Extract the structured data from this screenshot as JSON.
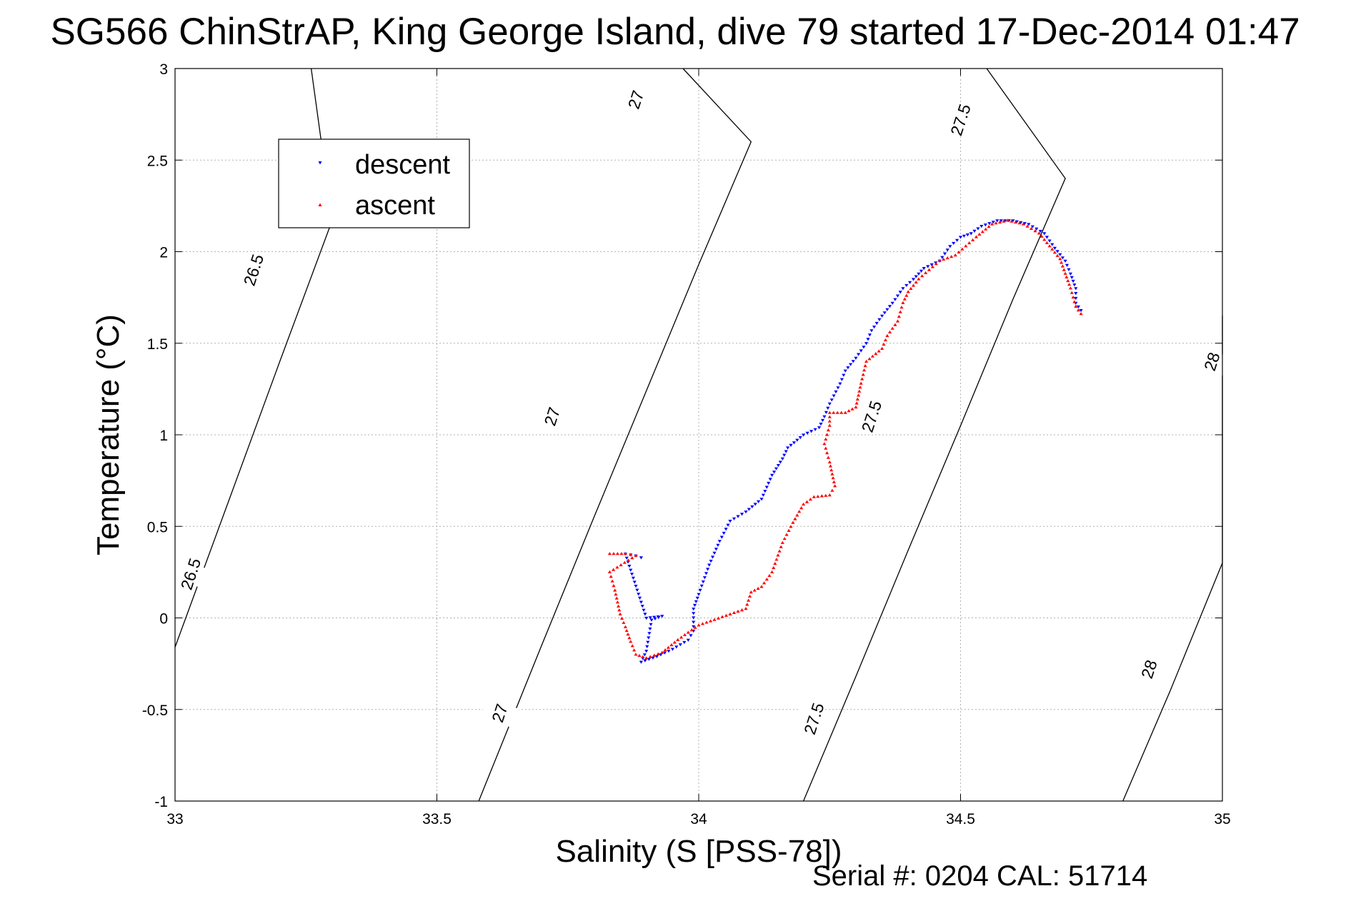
{
  "chart_data": {
    "type": "scatter",
    "title": "SG566 ChinStrAP, King George Island, dive 79 started 17-Dec-2014 01:47",
    "xlabel": "Salinity (S [PSS-78])",
    "ylabel": "Temperature (°C)",
    "footer": "Serial #: 0204  CAL: 51714",
    "xlim": [
      33,
      35
    ],
    "ylim": [
      -1,
      3
    ],
    "x_ticks": [
      33,
      33.5,
      34,
      34.5,
      35
    ],
    "x_tick_labels": [
      "33",
      "33.5",
      "34",
      "34.5",
      "35"
    ],
    "y_ticks": [
      -1,
      -0.5,
      0,
      0.5,
      1,
      1.5,
      2,
      2.5,
      3
    ],
    "y_tick_labels": [
      "-1",
      "-0.5",
      "0",
      "0.5",
      "1",
      "1.5",
      "2",
      "2.5",
      "3"
    ],
    "grid": true,
    "legend": {
      "position": "top-left",
      "entries": [
        "descent",
        "ascent"
      ]
    },
    "colors": {
      "descent": "#0000ff",
      "ascent": "#ff0000",
      "contour": "#000000",
      "grid": "#b0b0b0"
    },
    "isopycnals": [
      {
        "level": "26.5",
        "points": [
          [
            33.0,
            -0.16
          ],
          [
            33.1,
            0.62
          ],
          [
            33.2,
            1.4
          ],
          [
            33.3,
            2.17
          ],
          [
            33.26,
            3.0
          ]
        ],
        "labels": [
          {
            "x": 33.03,
            "y": 0.24,
            "text": "26.5"
          },
          {
            "x": 33.15,
            "y": 1.9,
            "text": "26.5"
          }
        ]
      },
      {
        "level": "27",
        "points": [
          [
            33.58,
            -1.0
          ],
          [
            33.7,
            -0.15
          ],
          [
            33.8,
            0.55
          ],
          [
            33.9,
            1.24
          ],
          [
            34.0,
            1.93
          ],
          [
            34.1,
            2.6
          ],
          [
            33.97,
            3.0
          ]
        ],
        "labels": [
          {
            "x": 33.62,
            "y": -0.52,
            "text": "27"
          },
          {
            "x": 33.72,
            "y": 1.1,
            "text": "27"
          },
          {
            "x": 33.88,
            "y": 2.83,
            "text": "27"
          }
        ]
      },
      {
        "level": "27.5",
        "points": [
          [
            34.2,
            -1.0
          ],
          [
            34.3,
            -0.32
          ],
          [
            34.4,
            0.37
          ],
          [
            34.5,
            1.05
          ],
          [
            34.6,
            1.74
          ],
          [
            34.7,
            2.4
          ],
          [
            34.55,
            3.0
          ]
        ],
        "labels": [
          {
            "x": 34.22,
            "y": -0.55,
            "text": "27.5"
          },
          {
            "x": 34.33,
            "y": 1.1,
            "text": "27.5"
          },
          {
            "x": 34.5,
            "y": 2.72,
            "text": "27.5"
          }
        ]
      },
      {
        "level": "28",
        "points": [
          [
            34.81,
            -1.0
          ],
          [
            34.9,
            -0.4
          ],
          [
            35.0,
            0.3
          ],
          [
            35.0,
            1.0
          ],
          [
            35.0,
            1.65
          ]
        ],
        "labels": [
          {
            "x": 34.86,
            "y": -0.28,
            "text": "28"
          },
          {
            "x": 34.98,
            "y": 1.4,
            "text": "28"
          }
        ]
      }
    ],
    "series": [
      {
        "name": "descent",
        "marker": "down-triangle",
        "trace": [
          [
            33.89,
            0.33
          ],
          [
            33.88,
            0.34
          ],
          [
            33.86,
            0.35
          ],
          [
            33.9,
            0.0
          ],
          [
            33.93,
            0.01
          ],
          [
            33.91,
            -0.01
          ],
          [
            33.9,
            -0.18
          ],
          [
            33.89,
            -0.24
          ],
          [
            33.92,
            -0.21
          ],
          [
            33.95,
            -0.17
          ],
          [
            33.98,
            -0.12
          ],
          [
            33.99,
            -0.07
          ],
          [
            33.99,
            0.05
          ],
          [
            34.0,
            0.13
          ],
          [
            34.02,
            0.29
          ],
          [
            34.04,
            0.42
          ],
          [
            34.06,
            0.53
          ],
          [
            34.09,
            0.58
          ],
          [
            34.12,
            0.65
          ],
          [
            34.14,
            0.78
          ],
          [
            34.16,
            0.87
          ],
          [
            34.17,
            0.93
          ],
          [
            34.2,
            1.0
          ],
          [
            34.23,
            1.04
          ],
          [
            34.24,
            1.1
          ],
          [
            34.25,
            1.17
          ],
          [
            34.27,
            1.28
          ],
          [
            34.28,
            1.35
          ],
          [
            34.3,
            1.42
          ],
          [
            34.32,
            1.5
          ],
          [
            34.33,
            1.57
          ],
          [
            34.35,
            1.65
          ],
          [
            34.37,
            1.72
          ],
          [
            34.39,
            1.8
          ],
          [
            34.41,
            1.85
          ],
          [
            34.43,
            1.91
          ],
          [
            34.46,
            1.95
          ],
          [
            34.48,
            2.03
          ],
          [
            34.5,
            2.08
          ],
          [
            34.52,
            2.1
          ],
          [
            34.54,
            2.14
          ],
          [
            34.57,
            2.17
          ],
          [
            34.6,
            2.17
          ],
          [
            34.63,
            2.15
          ],
          [
            34.66,
            2.1
          ],
          [
            34.68,
            2.02
          ],
          [
            34.7,
            1.95
          ],
          [
            34.71,
            1.88
          ],
          [
            34.72,
            1.8
          ],
          [
            34.72,
            1.72
          ],
          [
            34.73,
            1.68
          ]
        ]
      },
      {
        "name": "ascent",
        "marker": "up-triangle",
        "trace": [
          [
            33.83,
            0.35
          ],
          [
            33.86,
            0.35
          ],
          [
            33.88,
            0.34
          ],
          [
            33.83,
            0.25
          ],
          [
            33.84,
            0.15
          ],
          [
            33.85,
            0.02
          ],
          [
            33.86,
            -0.05
          ],
          [
            33.87,
            -0.13
          ],
          [
            33.88,
            -0.2
          ],
          [
            33.9,
            -0.22
          ],
          [
            33.93,
            -0.19
          ],
          [
            33.96,
            -0.12
          ],
          [
            34.0,
            -0.04
          ],
          [
            34.03,
            -0.01
          ],
          [
            34.06,
            0.02
          ],
          [
            34.09,
            0.05
          ],
          [
            34.1,
            0.14
          ],
          [
            34.12,
            0.17
          ],
          [
            34.14,
            0.25
          ],
          [
            34.16,
            0.41
          ],
          [
            34.18,
            0.52
          ],
          [
            34.2,
            0.62
          ],
          [
            34.22,
            0.66
          ],
          [
            34.25,
            0.67
          ],
          [
            34.26,
            0.72
          ],
          [
            34.25,
            0.85
          ],
          [
            34.24,
            0.95
          ],
          [
            34.25,
            1.05
          ],
          [
            34.25,
            1.12
          ],
          [
            34.28,
            1.12
          ],
          [
            34.3,
            1.15
          ],
          [
            34.31,
            1.28
          ],
          [
            34.32,
            1.4
          ],
          [
            34.35,
            1.47
          ],
          [
            34.36,
            1.54
          ],
          [
            34.38,
            1.62
          ],
          [
            34.39,
            1.72
          ],
          [
            34.4,
            1.78
          ],
          [
            34.42,
            1.85
          ],
          [
            34.44,
            1.9
          ],
          [
            34.46,
            1.95
          ],
          [
            34.49,
            1.98
          ],
          [
            34.51,
            2.03
          ],
          [
            34.53,
            2.08
          ],
          [
            34.56,
            2.15
          ],
          [
            34.59,
            2.17
          ],
          [
            34.62,
            2.15
          ],
          [
            34.65,
            2.1
          ],
          [
            34.67,
            2.03
          ],
          [
            34.69,
            1.96
          ],
          [
            34.7,
            1.88
          ],
          [
            34.71,
            1.8
          ],
          [
            34.72,
            1.7
          ],
          [
            34.73,
            1.66
          ]
        ]
      }
    ]
  }
}
